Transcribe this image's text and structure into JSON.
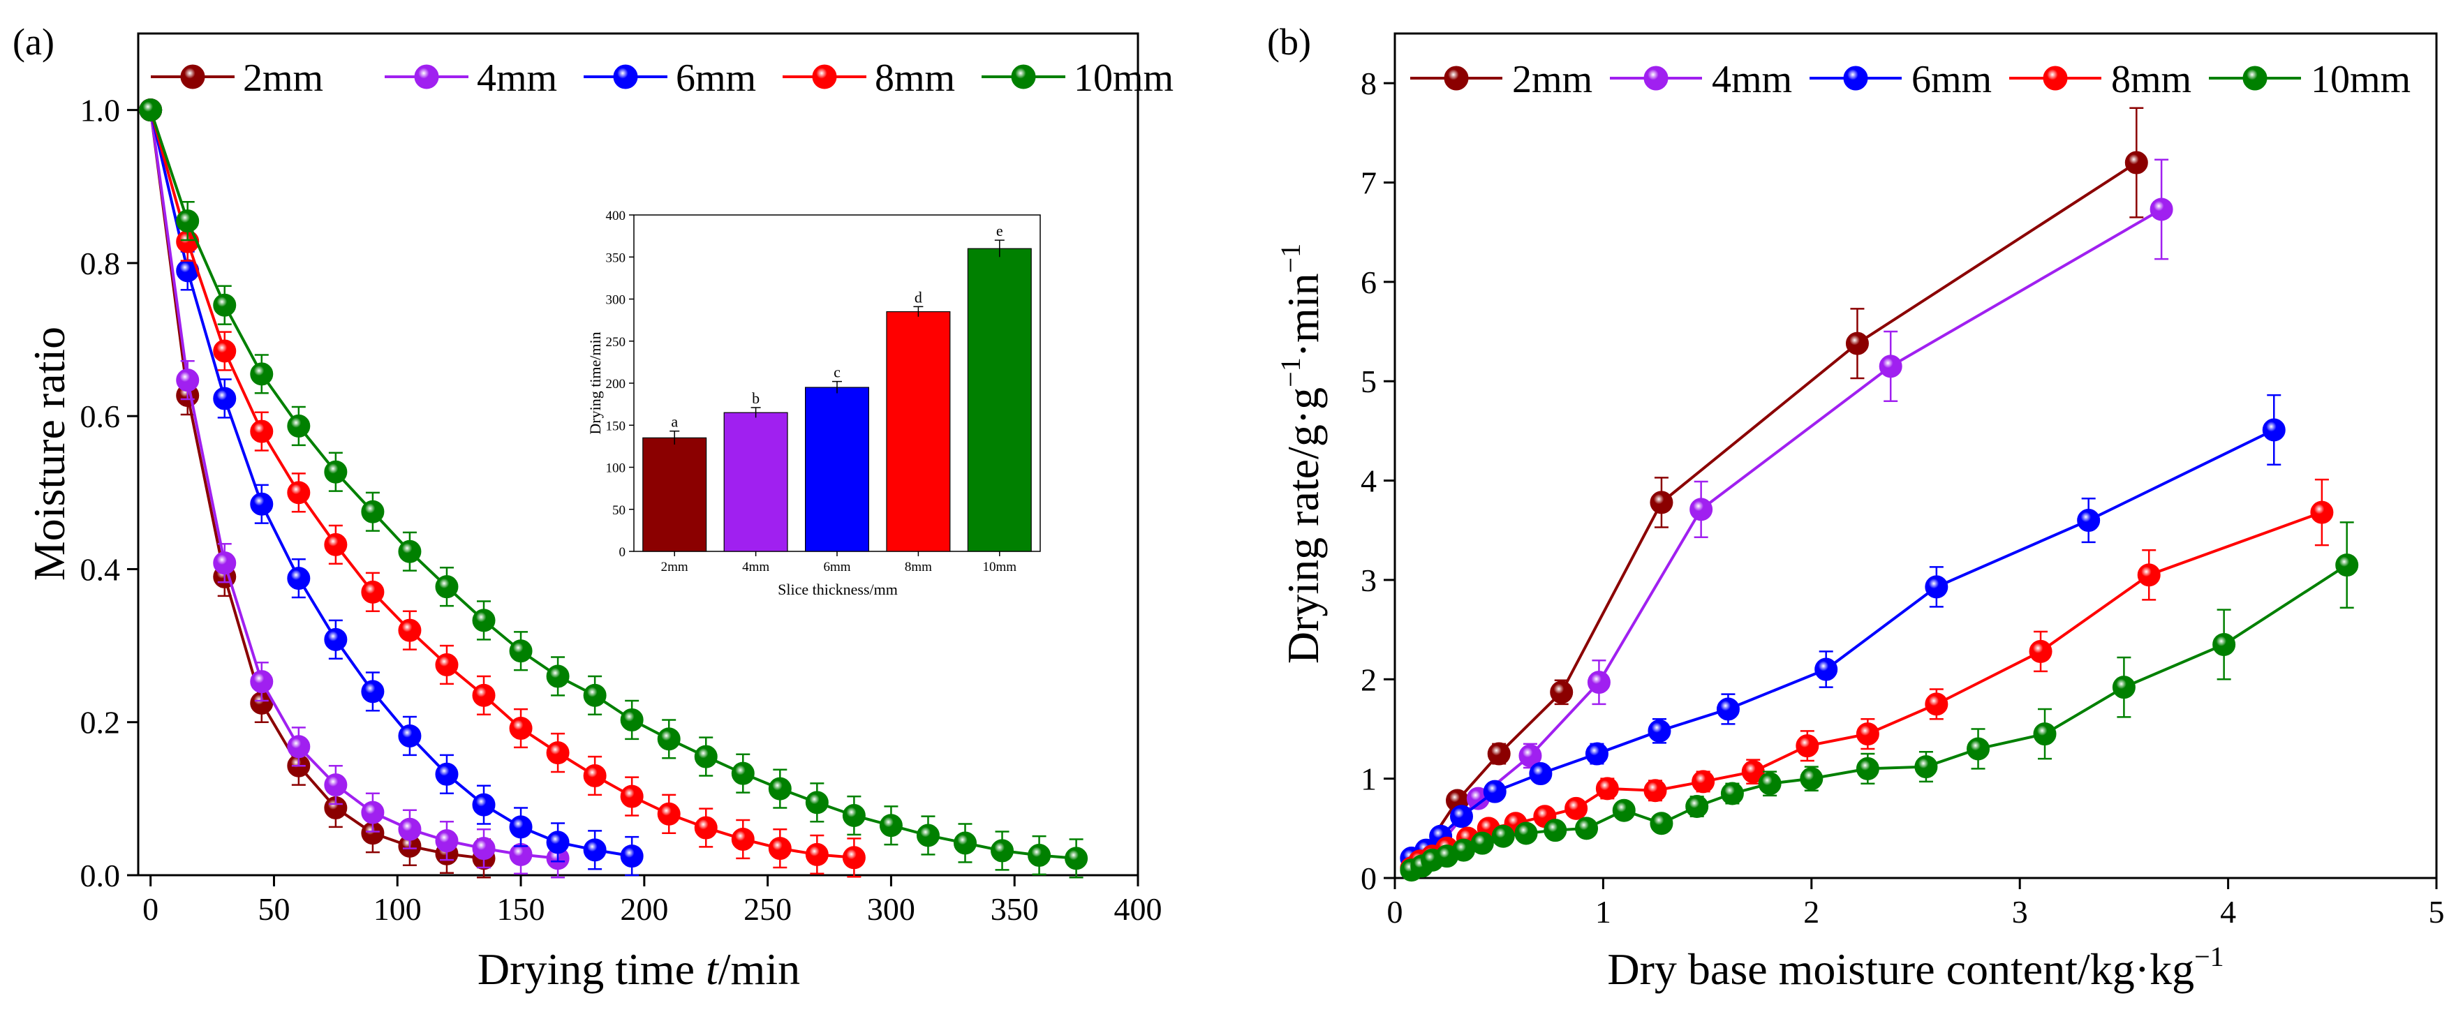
{
  "chart_data": [
    {
      "type": "line",
      "panel_label": "(a)",
      "xlabel_prefix": "Drying time ",
      "xlabel_var": "t",
      "xlabel_unit": "/min",
      "ylabel": "Moisture ratio",
      "xlim": [
        -5,
        400
      ],
      "ylim": [
        0,
        1.1
      ],
      "xticks": [
        0,
        50,
        100,
        150,
        200,
        250,
        300,
        350,
        400
      ],
      "yticks": [
        0.0,
        0.2,
        0.4,
        0.6,
        0.8,
        1.0
      ],
      "ytick_labels": [
        "0.0",
        "0.2",
        "0.4",
        "0.6",
        "0.8",
        "1.0"
      ],
      "legend_position": "top",
      "series": [
        {
          "name": "2mm",
          "color": "#8B0000",
          "error": 0.025,
          "x": [
            0,
            15,
            30,
            45,
            60,
            75,
            90,
            105,
            120,
            135
          ],
          "y": [
            1.0,
            0.627,
            0.39,
            0.225,
            0.143,
            0.088,
            0.055,
            0.038,
            0.028,
            0.022
          ]
        },
        {
          "name": "4mm",
          "color": "#A020F0",
          "error": 0.025,
          "x": [
            0,
            15,
            30,
            45,
            60,
            75,
            90,
            105,
            120,
            135,
            150,
            165
          ],
          "y": [
            1.0,
            0.647,
            0.408,
            0.253,
            0.168,
            0.118,
            0.082,
            0.06,
            0.045,
            0.035,
            0.027,
            0.022
          ]
        },
        {
          "name": "6mm",
          "color": "#0000FF",
          "error": 0.025,
          "x": [
            0,
            15,
            30,
            45,
            60,
            75,
            90,
            105,
            120,
            135,
            150,
            165,
            180,
            195
          ],
          "y": [
            1.0,
            0.79,
            0.623,
            0.485,
            0.388,
            0.308,
            0.24,
            0.182,
            0.132,
            0.092,
            0.063,
            0.043,
            0.033,
            0.025
          ]
        },
        {
          "name": "8mm",
          "color": "#FF0000",
          "error": 0.025,
          "x": [
            0,
            15,
            30,
            45,
            60,
            75,
            90,
            105,
            120,
            135,
            150,
            165,
            180,
            195,
            210,
            225,
            240,
            255,
            270,
            285
          ],
          "y": [
            1.0,
            0.828,
            0.685,
            0.58,
            0.5,
            0.432,
            0.37,
            0.32,
            0.275,
            0.235,
            0.192,
            0.16,
            0.13,
            0.103,
            0.08,
            0.062,
            0.047,
            0.035,
            0.027,
            0.023
          ]
        },
        {
          "name": "10mm",
          "color": "#008000",
          "error": 0.025,
          "x": [
            0,
            15,
            30,
            45,
            60,
            75,
            90,
            105,
            120,
            135,
            150,
            165,
            180,
            195,
            210,
            225,
            240,
            255,
            270,
            285,
            300,
            315,
            330,
            345,
            360,
            375
          ],
          "y": [
            1.0,
            0.855,
            0.745,
            0.655,
            0.587,
            0.527,
            0.475,
            0.423,
            0.377,
            0.333,
            0.293,
            0.26,
            0.235,
            0.203,
            0.178,
            0.155,
            0.133,
            0.113,
            0.095,
            0.078,
            0.065,
            0.052,
            0.042,
            0.032,
            0.026,
            0.022
          ]
        }
      ],
      "inset": {
        "type": "bar",
        "title": "",
        "xlabel": "Slice thickness/mm",
        "ylabel": "Drying time/min",
        "ylim": [
          0,
          400
        ],
        "yticks": [
          0,
          50,
          100,
          150,
          200,
          250,
          300,
          350,
          400
        ],
        "categories": [
          "2mm",
          "4mm",
          "6mm",
          "8mm",
          "10mm"
        ],
        "values": [
          135,
          165,
          195,
          285,
          360
        ],
        "errors": [
          8,
          6,
          7,
          6,
          10
        ],
        "letters": [
          "a",
          "b",
          "c",
          "d",
          "e"
        ],
        "colors": [
          "#8B0000",
          "#A020F0",
          "#0000FF",
          "#FF0000",
          "#008000"
        ]
      }
    },
    {
      "type": "line",
      "panel_label": "(b)",
      "xlabel": "Dry base moisture content/kg·kg",
      "xlabel_sup": "−1",
      "ylabel_main": "Drying rate/g·g",
      "ylabel_sup1": "−1",
      "ylabel_mid": "·min",
      "ylabel_sup2": "−1",
      "xlim": [
        0,
        5
      ],
      "ylim": [
        0,
        8.5
      ],
      "xticks": [
        0,
        1,
        2,
        3,
        4,
        5
      ],
      "yticks": [
        0,
        1,
        2,
        3,
        4,
        5,
        6,
        7,
        8
      ],
      "legend_position": "top",
      "series": [
        {
          "name": "2mm",
          "color": "#8B0000",
          "x": [
            0.1,
            0.3,
            0.5,
            0.8,
            1.28,
            2.22,
            3.56
          ],
          "y": [
            0.15,
            0.78,
            1.25,
            1.87,
            3.78,
            5.38,
            7.2
          ],
          "err": [
            0.05,
            0.08,
            0.1,
            0.12,
            0.25,
            0.35,
            0.55
          ]
        },
        {
          "name": "4mm",
          "color": "#A020F0",
          "x": [
            0.1,
            0.2,
            0.4,
            0.65,
            0.98,
            1.47,
            2.38,
            3.68
          ],
          "y": [
            0.15,
            0.3,
            0.8,
            1.23,
            1.97,
            3.71,
            5.15,
            6.73
          ],
          "err": [
            0.05,
            0.06,
            0.08,
            0.12,
            0.22,
            0.28,
            0.35,
            0.5
          ]
        },
        {
          "name": "6mm",
          "color": "#0000FF",
          "x": [
            0.08,
            0.15,
            0.22,
            0.32,
            0.48,
            0.7,
            0.97,
            1.27,
            1.6,
            2.07,
            2.6,
            3.33,
            4.22
          ],
          "y": [
            0.2,
            0.28,
            0.42,
            0.62,
            0.87,
            1.05,
            1.25,
            1.48,
            1.7,
            2.1,
            2.93,
            3.6,
            4.51
          ],
          "err": [
            0.04,
            0.05,
            0.06,
            0.06,
            0.08,
            0.08,
            0.1,
            0.12,
            0.15,
            0.18,
            0.2,
            0.22,
            0.35
          ]
        },
        {
          "name": "8mm",
          "color": "#FF0000",
          "x": [
            0.08,
            0.12,
            0.18,
            0.25,
            0.35,
            0.45,
            0.58,
            0.72,
            0.87,
            1.02,
            1.25,
            1.48,
            1.72,
            1.98,
            2.27,
            2.6,
            3.1,
            3.62,
            4.45
          ],
          "y": [
            0.1,
            0.17,
            0.22,
            0.3,
            0.4,
            0.5,
            0.55,
            0.62,
            0.7,
            0.9,
            0.88,
            0.97,
            1.07,
            1.33,
            1.45,
            1.75,
            2.28,
            3.05,
            3.68
          ],
          "err": [
            0.03,
            0.03,
            0.04,
            0.05,
            0.05,
            0.06,
            0.06,
            0.07,
            0.08,
            0.1,
            0.1,
            0.1,
            0.12,
            0.15,
            0.15,
            0.15,
            0.2,
            0.25,
            0.33
          ]
        },
        {
          "name": "10mm",
          "color": "#008000",
          "x": [
            0.08,
            0.13,
            0.18,
            0.25,
            0.33,
            0.42,
            0.52,
            0.63,
            0.77,
            0.92,
            1.1,
            1.28,
            1.45,
            1.62,
            1.8,
            2.0,
            2.27,
            2.55,
            2.8,
            3.12,
            3.5,
            3.98,
            4.57
          ],
          "y": [
            0.08,
            0.12,
            0.18,
            0.22,
            0.28,
            0.35,
            0.42,
            0.45,
            0.48,
            0.5,
            0.68,
            0.55,
            0.72,
            0.85,
            0.95,
            1.0,
            1.1,
            1.12,
            1.3,
            1.45,
            1.92,
            2.35,
            3.15
          ],
          "err": [
            0.03,
            0.03,
            0.04,
            0.04,
            0.05,
            0.05,
            0.06,
            0.06,
            0.06,
            0.07,
            0.08,
            0.08,
            0.1,
            0.1,
            0.12,
            0.12,
            0.15,
            0.15,
            0.2,
            0.25,
            0.3,
            0.35,
            0.43
          ]
        }
      ]
    }
  ]
}
